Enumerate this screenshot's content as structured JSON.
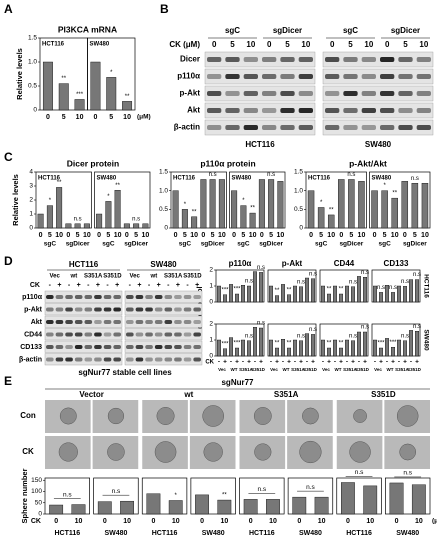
{
  "panel_letters": [
    "A",
    "B",
    "C",
    "D",
    "E"
  ],
  "chart_data": [
    {
      "type": "bar",
      "title": "PI3KCA mRNA",
      "ylabel": "Relative levels",
      "ylim": [
        0,
        1.5
      ],
      "yticks": [
        0,
        0.5,
        {
          "value": 1,
          "label": "1.0"
        },
        1.5
      ],
      "categories": [
        "0",
        "5",
        "10"
      ],
      "xunit": "(μM)",
      "color": "#777777",
      "series": [
        {
          "name": "HCT116",
          "values": [
            1.0,
            0.55,
            0.22
          ],
          "stars": [
            null,
            "**",
            "***"
          ]
        },
        {
          "name": "SW480",
          "values": [
            1.0,
            0.68,
            0.18
          ],
          "stars": [
            null,
            "*",
            "**"
          ]
        }
      ]
    },
    {
      "type": "bar",
      "title": "Dicer protein",
      "ylabel": "Relative levels",
      "ylim": [
        0,
        4
      ],
      "yticks": [
        0,
        1,
        2,
        3,
        4
      ],
      "categories": [
        "0",
        "5",
        "10",
        "0",
        "5",
        "10"
      ],
      "group_labels": [
        "sgC",
        "sgDicer"
      ],
      "color": "#777777",
      "series": [
        {
          "name": "HCT116",
          "values": [
            1.0,
            1.6,
            2.9,
            0.3,
            0.3,
            0.3
          ],
          "stars": [
            null,
            "*",
            "**",
            null,
            "n.s",
            null
          ]
        },
        {
          "name": "SW480",
          "values": [
            1.0,
            1.9,
            2.7,
            0.3,
            0.3,
            0.3
          ],
          "stars": [
            null,
            "*",
            "**",
            null,
            "n.s",
            null
          ]
        }
      ]
    },
    {
      "type": "bar",
      "title": "p110α protein",
      "ylim": [
        0,
        1.5
      ],
      "yticks": [
        0,
        0.5,
        {
          "value": 1,
          "label": "1.0"
        },
        1.5
      ],
      "categories": [
        "0",
        "5",
        "10",
        "0",
        "5",
        "10"
      ],
      "group_labels": [
        "sgC",
        "sgDicer"
      ],
      "color": "#777777",
      "series": [
        {
          "name": "HCT116",
          "values": [
            1.0,
            0.5,
            0.3,
            1.3,
            1.3,
            1.3
          ],
          "stars": [
            null,
            "*",
            "**",
            null,
            "n.s",
            null
          ]
        },
        {
          "name": "SW480",
          "values": [
            1.0,
            0.6,
            0.4,
            1.3,
            1.3,
            1.25
          ],
          "stars": [
            null,
            "*",
            "**",
            null,
            "n.s",
            null
          ]
        }
      ]
    },
    {
      "type": "bar",
      "title": "p-Akt/Akt",
      "ylim": [
        0,
        1.5
      ],
      "yticks": [
        0,
        0.5,
        {
          "value": 1,
          "label": "1.0"
        },
        1.5
      ],
      "categories": [
        "0",
        "5",
        "10",
        "0",
        "5",
        "10"
      ],
      "group_labels": [
        "sgC",
        "sgDicer"
      ],
      "color": "#777777",
      "series": [
        {
          "name": "HCT116",
          "values": [
            1.0,
            0.55,
            0.35,
            1.3,
            1.3,
            1.25
          ],
          "stars": [
            null,
            "*",
            "**",
            null,
            "n.s",
            null
          ]
        },
        {
          "name": "SW480",
          "values": [
            1.0,
            1.0,
            0.8,
            1.25,
            1.2,
            1.2
          ],
          "stars": [
            null,
            "*",
            "**",
            null,
            "n.s",
            null
          ]
        }
      ]
    },
    {
      "type": "bargrid",
      "ylabel": "Folds of control",
      "ylim": [
        0,
        2
      ],
      "yticks": [
        0,
        1,
        2
      ],
      "color": "#777777",
      "titles": [
        "p110α",
        "p-Akt",
        "CD44",
        "CD133"
      ],
      "xlabel": "CK",
      "categories": [
        "-",
        "+",
        "-",
        "+",
        "-",
        "+",
        "-",
        "+"
      ],
      "group_labels": [
        "Vec",
        "WT",
        "S351A",
        "S351D"
      ],
      "rows": [
        {
          "name": "HCT116",
          "cells": [
            {
              "values": [
                1.0,
                0.45,
                1.1,
                0.5,
                1.05,
                1.0,
                1.9,
                1.85
              ],
              "stars": [
                null,
                "***",
                null,
                "***",
                null,
                "n.s",
                null,
                "n.s"
              ]
            },
            {
              "values": [
                1.0,
                0.4,
                1.1,
                0.45,
                1.0,
                0.95,
                1.5,
                1.45
              ],
              "stars": [
                null,
                "**",
                null,
                "**",
                null,
                "n.s",
                null,
                "n.s"
              ]
            },
            {
              "values": [
                1.0,
                0.5,
                1.0,
                0.5,
                1.0,
                0.95,
                1.6,
                1.55
              ],
              "stars": [
                null,
                "**",
                null,
                "**",
                null,
                "n.s",
                null,
                "n.s"
              ]
            },
            {
              "values": [
                1.0,
                0.6,
                1.05,
                0.6,
                1.0,
                0.98,
                1.4,
                1.4
              ],
              "stars": [
                null,
                "n.s",
                null,
                "n.s",
                null,
                "n.s",
                null,
                "n.s"
              ]
            }
          ]
        },
        {
          "name": "SW480",
          "cells": [
            {
              "values": [
                1.0,
                0.45,
                1.15,
                0.5,
                1.0,
                0.95,
                1.8,
                1.75
              ],
              "stars": [
                null,
                "***",
                null,
                "***",
                null,
                "n.s",
                null,
                "n.s"
              ]
            },
            {
              "values": [
                1.0,
                0.5,
                1.05,
                0.5,
                1.0,
                0.95,
                1.4,
                1.35
              ],
              "stars": [
                null,
                "**",
                null,
                "**",
                null,
                "n.s",
                null,
                "n.s"
              ]
            },
            {
              "values": [
                1.0,
                0.5,
                1.0,
                0.5,
                1.0,
                0.95,
                1.5,
                1.5
              ],
              "stars": [
                null,
                "**",
                null,
                "**",
                null,
                "n.s",
                null,
                "n.s"
              ]
            },
            {
              "values": [
                1.0,
                0.5,
                1.1,
                0.55,
                1.0,
                0.95,
                1.6,
                1.55
              ],
              "stars": [
                null,
                "***",
                null,
                "***",
                null,
                "n.s",
                null,
                "n.s"
              ]
            }
          ]
        }
      ]
    },
    {
      "type": "bar",
      "ylabel": "Sphere number",
      "ylim": [
        0,
        160
      ],
      "yticks": [
        0,
        50,
        100,
        150
      ],
      "xlabel": "CK",
      "xunit": "(μM)",
      "categories": [
        "0",
        "10"
      ],
      "color": "#777777",
      "names_below": true,
      "series": [
        {
          "name": "HCT116",
          "values": [
            40,
            42
          ],
          "stars": [
            null,
            null
          ],
          "note": "n.s"
        },
        {
          "name": "SW480",
          "values": [
            55,
            57
          ],
          "stars": [
            null,
            null
          ],
          "note": "n.s"
        },
        {
          "name": "HCT116",
          "values": [
            90,
            60
          ],
          "stars": [
            null,
            "*"
          ]
        },
        {
          "name": "SW480",
          "values": [
            85,
            62
          ],
          "stars": [
            null,
            "**"
          ]
        },
        {
          "name": "HCT116",
          "values": [
            65,
            65
          ],
          "stars": [
            null,
            null
          ],
          "note": "n.s"
        },
        {
          "name": "SW480",
          "values": [
            75,
            75
          ],
          "stars": [
            null,
            null
          ],
          "note": "n.s"
        },
        {
          "name": "HCT116",
          "values": [
            140,
            125
          ],
          "stars": [
            null,
            null
          ],
          "note": "n.s"
        },
        {
          "name": "SW480",
          "values": [
            138,
            130
          ],
          "stars": [
            null,
            null
          ],
          "note": "n.s"
        }
      ]
    }
  ],
  "blot_b": {
    "dose_label": "CK (μM)",
    "cell_lines": [
      "HCT116",
      "SW480"
    ],
    "groups": [
      "sgC",
      "sgDicer"
    ],
    "doses": [
      "0",
      "5",
      "10"
    ],
    "proteins": [
      "Dicer",
      "p110α",
      "p-Akt",
      "Akt",
      "β-actin"
    ]
  },
  "blot_d": {
    "treatment_label": "CK",
    "cell_lines": [
      "HCT116",
      "SW480"
    ],
    "constructs": [
      "Vec",
      "wt",
      "S351A",
      "S351D"
    ],
    "treatment": [
      "-",
      "+"
    ],
    "proteins": [
      "p110α",
      "p-Akt",
      "Akt",
      "CD44",
      "CD133",
      "β-actin"
    ],
    "caption": "sgNur77 stable cell lines"
  },
  "images_e": {
    "title": "sgNur77",
    "groups": [
      "Vector",
      "wt",
      "S351A",
      "S351D"
    ],
    "rows": [
      "Con",
      "CK"
    ]
  }
}
